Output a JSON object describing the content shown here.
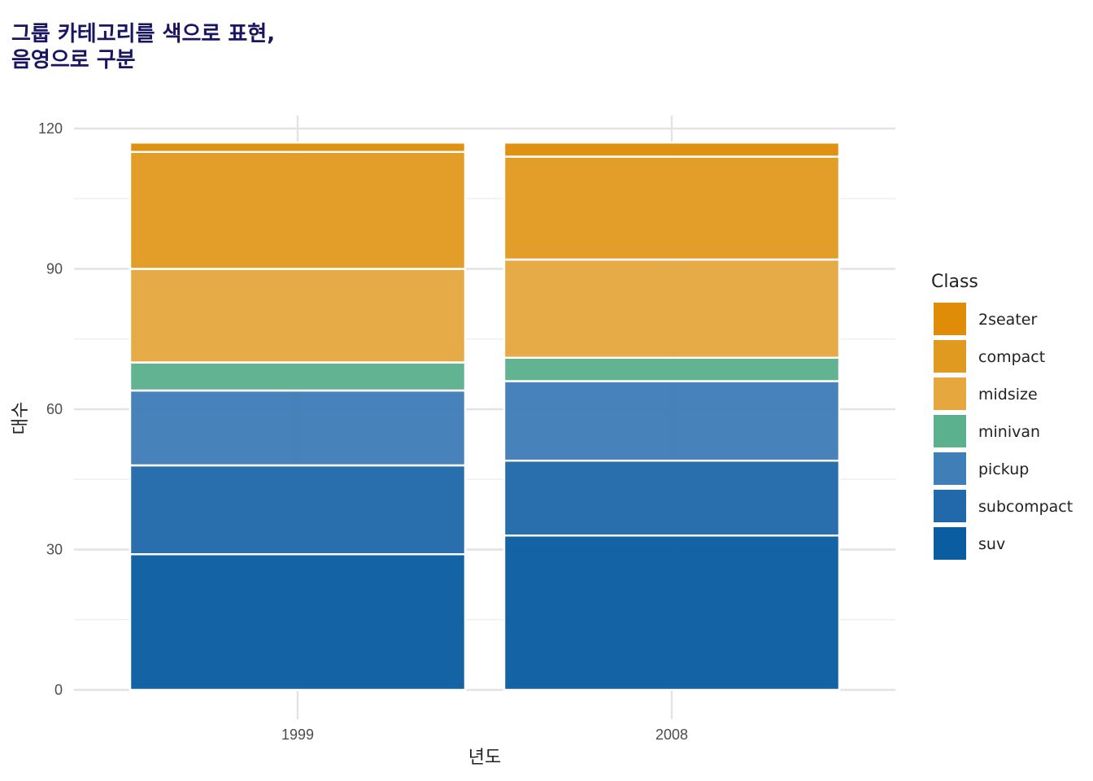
{
  "chart_data": {
    "type": "bar",
    "stacked": true,
    "title_lines": [
      "그룹 카테고리를 색으로 표현,",
      "음영으로 구분"
    ],
    "xlabel": "년도",
    "ylabel": "대수",
    "ylim": [
      0,
      120
    ],
    "y_ticks": [
      0,
      30,
      60,
      90,
      120
    ],
    "categories": [
      "1999",
      "2008"
    ],
    "grid": true,
    "legend": {
      "title": "Class",
      "position": "right"
    },
    "series": [
      {
        "name": "2seater",
        "color": "#DF8C06",
        "values": [
          2,
          3
        ]
      },
      {
        "name": "compact",
        "color": "#E19A20",
        "values": [
          25,
          22
        ]
      },
      {
        "name": "midsize",
        "color": "#E5A73E",
        "values": [
          20,
          21
        ]
      },
      {
        "name": "minivan",
        "color": "#5BB08D",
        "values": [
          6,
          5
        ]
      },
      {
        "name": "pickup",
        "color": "#3F7EB7",
        "values": [
          16,
          17
        ]
      },
      {
        "name": "subcompact",
        "color": "#2169AA",
        "values": [
          19,
          16
        ]
      },
      {
        "name": "suv",
        "color": "#0A5DA1",
        "values": [
          29,
          33
        ]
      }
    ]
  }
}
